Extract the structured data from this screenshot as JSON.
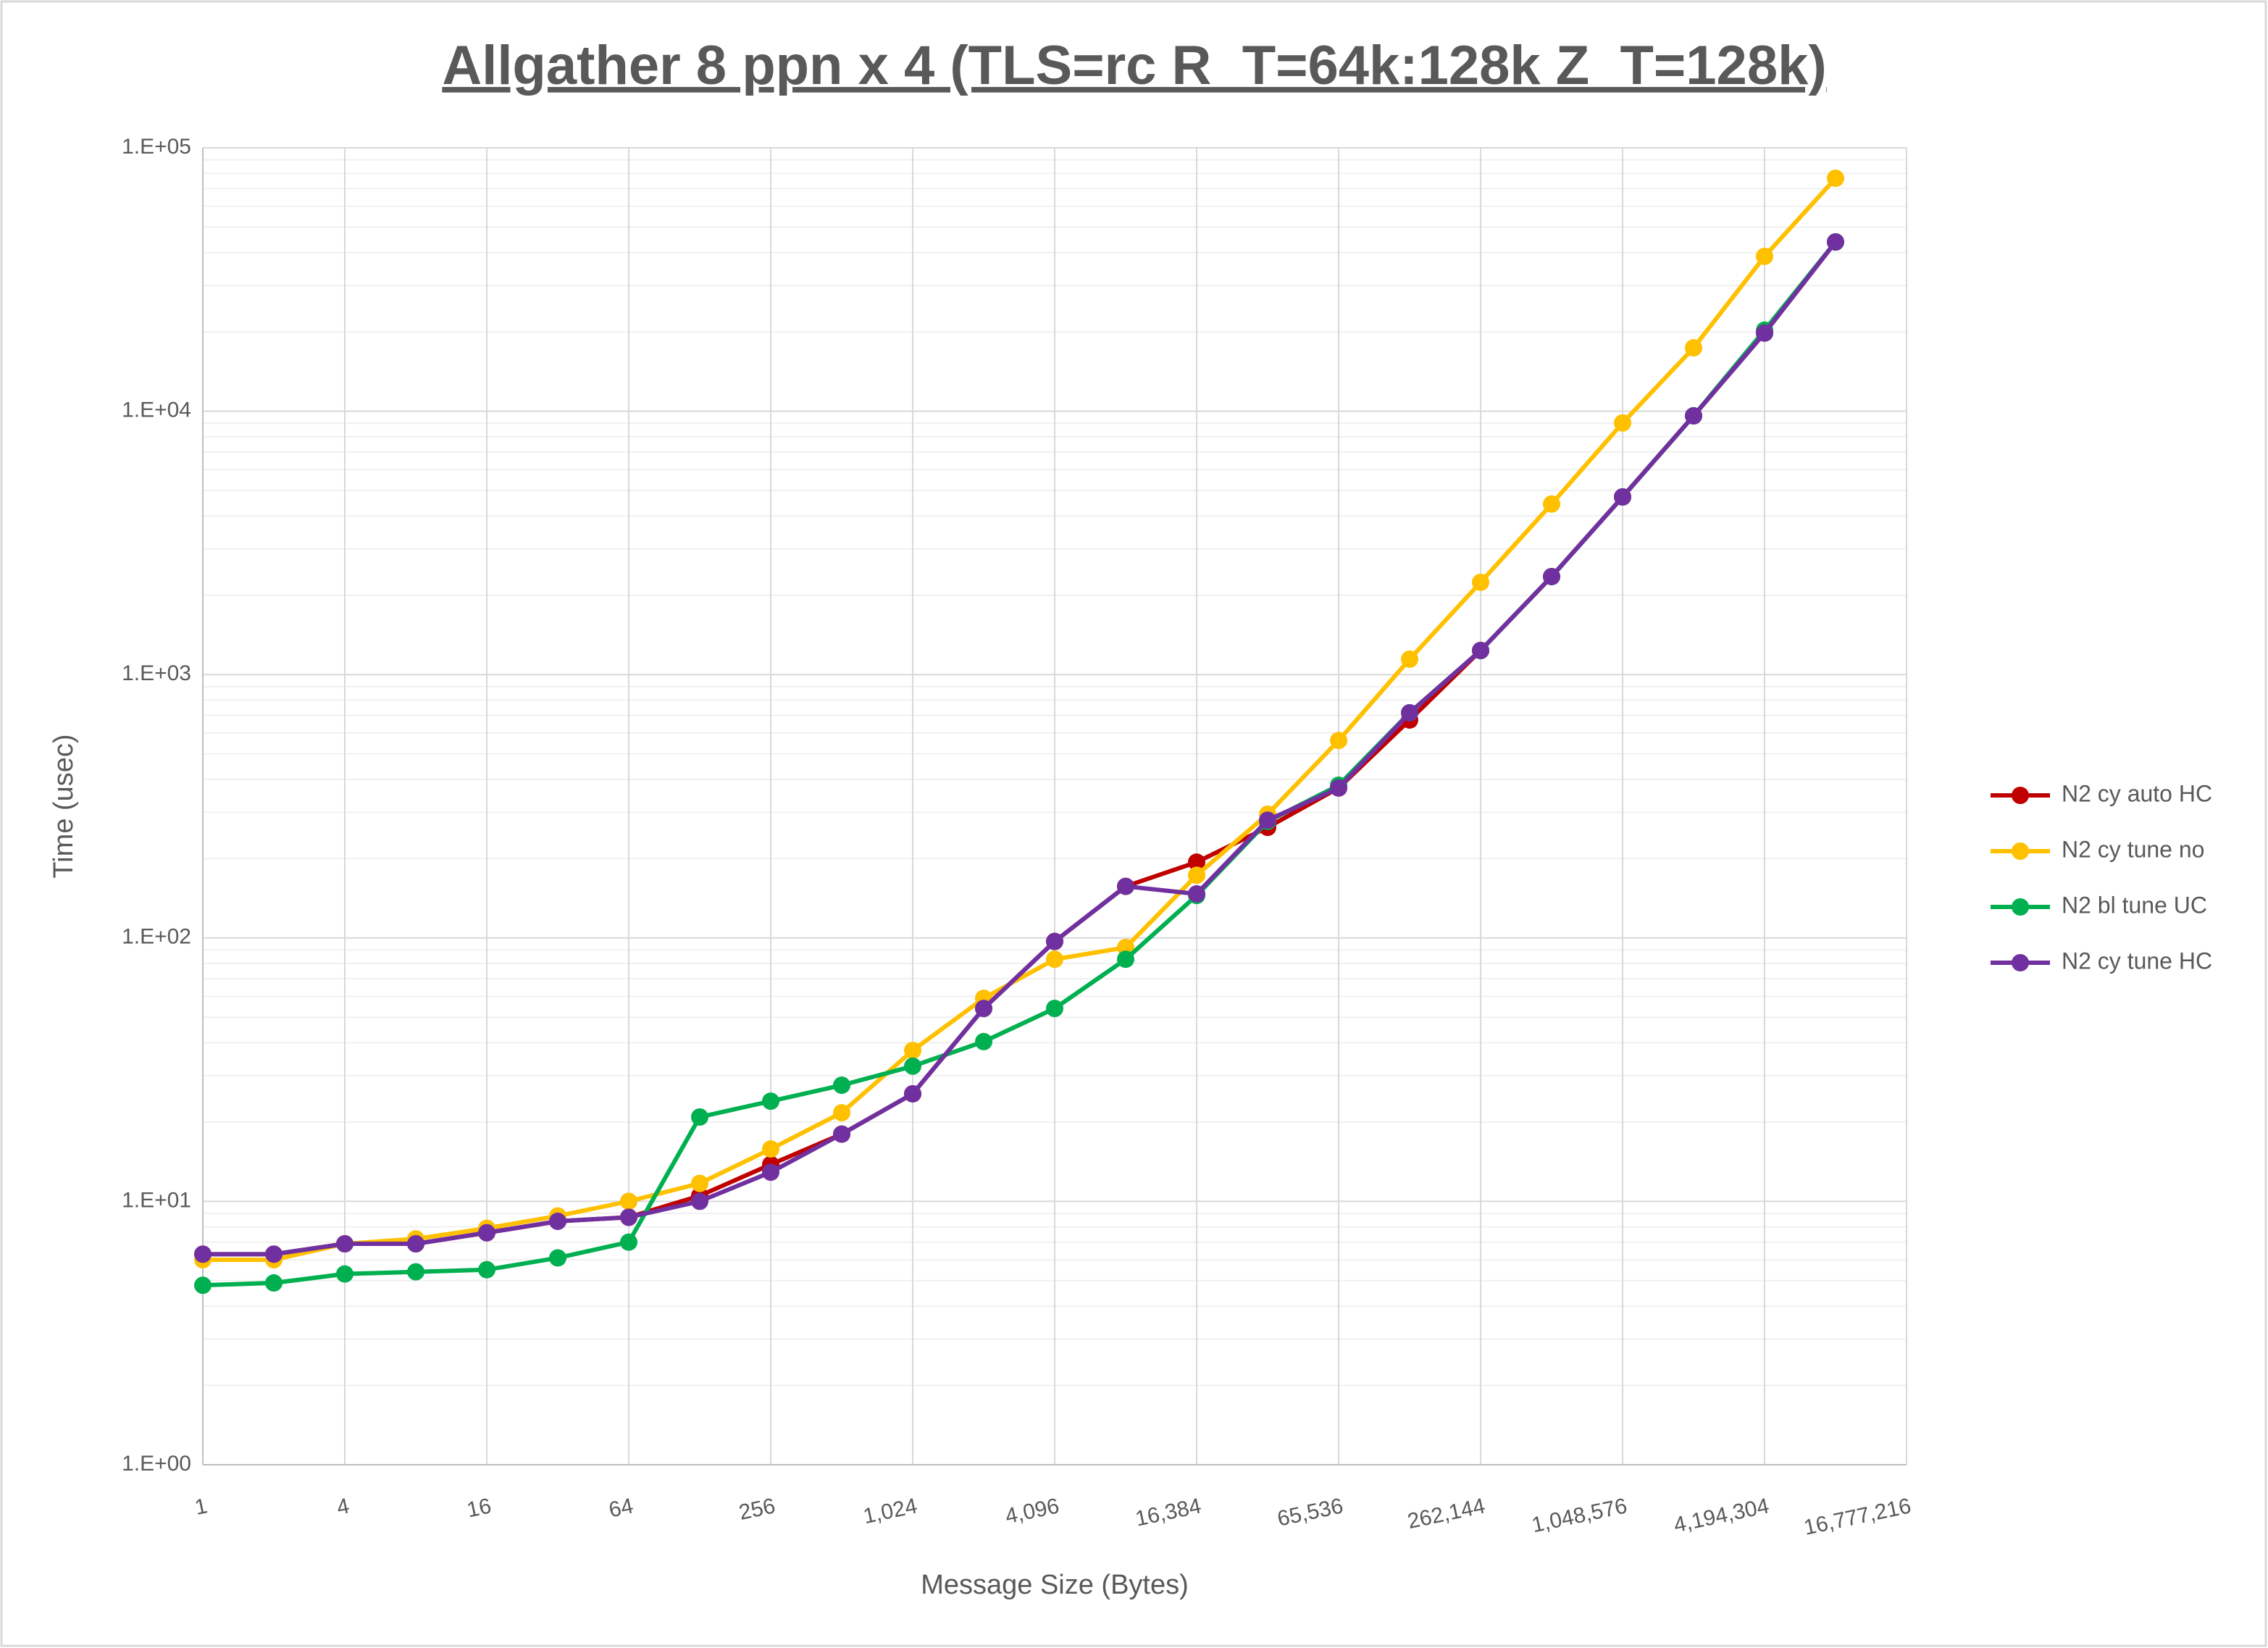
{
  "chart_data": {
    "type": "line",
    "title": "Allgather 8 ppn x 4 (TLS=rc R_T=64k:128k Z_T=128k)",
    "x_label": "Message Size (Bytes)",
    "y_label": "Time (usec)",
    "x": [
      1,
      2,
      4,
      8,
      16,
      32,
      64,
      128,
      256,
      512,
      1024,
      2048,
      4096,
      8192,
      16384,
      32768,
      65536,
      131072,
      262144,
      524288,
      1048576,
      2097152,
      4194304,
      8388608
    ],
    "series": [
      {
        "name": "N2 cy auto HC",
        "color": "#c00000",
        "values": [
          6.3,
          6.3,
          6.9,
          6.9,
          7.6,
          8.4,
          8.7,
          10.5,
          13.8,
          18,
          25.6,
          54,
          97,
          157,
          194,
          263,
          371,
          672,
          1234,
          2355,
          4725,
          9600,
          19800,
          43900
        ]
      },
      {
        "name": "N2 cy tune no",
        "color": "#ffc000",
        "values": [
          6.0,
          6.0,
          6.9,
          7.2,
          7.9,
          8.8,
          10,
          11.7,
          15.8,
          21.7,
          37.4,
          59,
          83,
          92,
          173,
          295,
          562,
          1144,
          2240,
          4440,
          9020,
          17400,
          38700,
          76600
        ]
      },
      {
        "name": "N2 bl tune UC",
        "color": "#00b050",
        "values": [
          4.8,
          4.9,
          5.3,
          5.4,
          5.5,
          6.1,
          7.0,
          20.9,
          24,
          27.6,
          32.6,
          40.4,
          54,
          83,
          145,
          277,
          380,
          716,
          1234,
          2355,
          4725,
          9600,
          20300,
          43900
        ]
      },
      {
        "name": "N2 cy tune HC",
        "color": "#7030a0",
        "values": [
          6.3,
          6.3,
          6.9,
          6.9,
          7.6,
          8.4,
          8.7,
          10.0,
          12.9,
          18,
          25.6,
          54,
          97,
          157,
          147,
          280,
          371,
          716,
          1234,
          2355,
          4725,
          9600,
          19800,
          43900
        ]
      }
    ],
    "xscale": "log",
    "xlog_base": 2,
    "yscale": "log",
    "xlim": [
      1,
      16777216
    ],
    "xticks": [
      1,
      4,
      16,
      64,
      256,
      {
        "value": 1024,
        "label": "1,024"
      },
      {
        "value": 4096,
        "label": "4,096"
      },
      {
        "value": 16384,
        "label": "16,384"
      },
      {
        "value": 65536,
        "label": "65,536"
      },
      {
        "value": 262144,
        "label": "262,144"
      },
      {
        "value": 1048576,
        "label": "1,048,576"
      },
      {
        "value": 4194304,
        "label": "4,194,304"
      },
      {
        "value": 16777216,
        "label": "16,777,216"
      }
    ],
    "ylim": [
      1,
      100000
    ],
    "yticks": [
      {
        "value": 1,
        "label": "1.E+00"
      },
      {
        "value": 10,
        "label": "1.E+01"
      },
      {
        "value": 100,
        "label": "1.E+02"
      },
      {
        "value": 1000,
        "label": "1.E+03"
      },
      {
        "value": 10000,
        "label": "1.E+04"
      },
      {
        "value": 100000,
        "label": "1.E+05"
      }
    ],
    "grid": true,
    "minor_grid": true,
    "markers": true,
    "legend": "right"
  }
}
